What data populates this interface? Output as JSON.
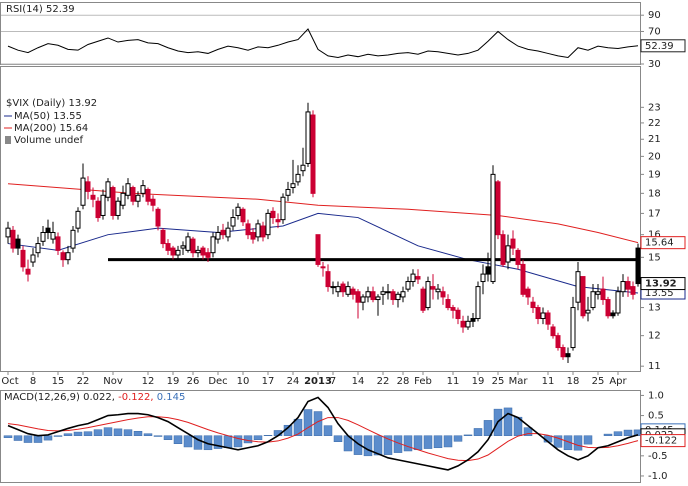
{
  "chart_data": [
    {
      "type": "line",
      "title": "RSI(14)",
      "color": "#000000",
      "x": [
        0,
        2,
        4,
        6,
        8,
        10,
        12,
        14,
        16,
        18,
        20,
        22,
        24,
        26,
        28,
        30,
        32,
        34,
        36,
        38,
        40,
        42,
        44,
        46,
        48,
        50,
        52,
        54,
        56,
        58,
        60,
        62,
        64,
        66,
        68,
        70,
        72,
        74,
        76,
        78,
        80,
        82,
        84,
        86,
        88,
        90,
        92,
        94,
        96,
        98,
        100,
        102,
        104,
        106,
        108,
        110,
        112,
        114,
        116,
        118,
        120,
        122,
        124,
        126
      ],
      "values": [
        52,
        47,
        44,
        50,
        55,
        53,
        48,
        47,
        54,
        58,
        62,
        57,
        59,
        60,
        56,
        55,
        50,
        46,
        44,
        45,
        43,
        48,
        52,
        50,
        47,
        51,
        50,
        53,
        57,
        60,
        73,
        48,
        40,
        38,
        41,
        39,
        42,
        40,
        41,
        43,
        44,
        42,
        46,
        45,
        43,
        41,
        43,
        47,
        58,
        70,
        60,
        52,
        48,
        46,
        43,
        40,
        38,
        50,
        47,
        52,
        50,
        49,
        51,
        52.39
      ],
      "ylim": [
        30,
        105
      ],
      "yticks": [
        30,
        70,
        90
      ],
      "grid": true
    },
    {
      "type": "candlestick",
      "title": "$VIX (Daily)",
      "log_scale": true,
      "up_color": "#000000",
      "down_color": "#cc0033",
      "open": [
        15.9,
        16.2,
        15.8,
        15.3,
        14.5,
        14.8,
        15.2,
        15.7,
        16.3,
        15.8,
        15.9,
        15.2,
        14.9,
        15.4,
        16.3,
        17.4,
        18.6,
        17.9,
        17.6,
        16.9,
        17.8,
        18.3,
        16.9,
        17.4,
        17.9,
        18.3,
        17.6,
        18.0,
        18.2,
        17.7,
        17.2,
        16.2,
        15.6,
        15.4,
        15.1,
        15.4,
        15.3,
        15.8,
        15.2,
        15.4,
        15.2,
        15.2,
        15.8,
        16.2,
        15.9,
        16.4,
        16.9,
        17.2,
        16.5,
        16.1,
        15.9,
        16.4,
        16.0,
        17.1,
        16.7,
        16.7,
        17.9,
        18.3,
        18.6,
        19.2,
        19.6,
        22.5,
        16.0,
        14.6,
        14.4,
        13.8,
        13.6,
        13.9,
        13.5,
        13.7,
        13.6,
        13.2,
        13.4,
        13.6,
        13.3,
        13.5,
        13.6,
        13.6,
        13.3,
        13.4,
        13.7,
        14.0,
        14.2,
        13.7,
        13.0,
        13.8,
        13.6,
        13.6,
        13.3,
        13.0,
        12.9,
        12.5,
        12.3,
        12.6,
        12.6,
        14.0,
        14.6,
        14.0,
        18.6,
        16.0,
        14.8,
        15.8,
        15.3,
        14.7,
        13.7,
        13.2,
        13.0,
        12.6,
        12.8,
        12.3,
        12.0,
        11.6,
        11.4,
        11.6,
        13.2,
        14.2,
        12.8,
        13.0,
        13.5,
        13.7,
        13.3,
        12.8,
        12.8,
        13.6,
        14.0,
        13.8,
        15.4
      ],
      "high": [
        16.6,
        16.4,
        16.0,
        15.5,
        14.9,
        15.4,
        15.9,
        16.4,
        16.7,
        16.6,
        16.1,
        15.3,
        15.5,
        16.4,
        17.3,
        19.6,
        18.9,
        18.3,
        17.8,
        18.2,
        18.8,
        18.4,
        17.8,
        18.4,
        18.8,
        18.4,
        18.1,
        18.7,
        18.3,
        17.9,
        17.3,
        16.3,
        15.8,
        15.5,
        15.5,
        15.7,
        16.1,
        15.9,
        15.5,
        15.5,
        15.4,
        16.1,
        16.4,
        16.5,
        16.6,
        17.2,
        17.5,
        17.3,
        16.7,
        16.3,
        16.7,
        16.6,
        17.2,
        17.3,
        17.0,
        18.0,
        18.6,
        19.8,
        19.5,
        20.5,
        23.3,
        22.8,
        16.0,
        14.8,
        14.7,
        14.0,
        14.0,
        14.0,
        14.0,
        13.8,
        13.7,
        13.5,
        13.8,
        13.8,
        13.5,
        13.8,
        13.9,
        13.7,
        13.6,
        13.8,
        14.2,
        14.5,
        14.5,
        13.8,
        14.2,
        14.3,
        13.9,
        13.8,
        13.5,
        13.1,
        13.0,
        12.7,
        12.7,
        12.8,
        14.0,
        14.7,
        15.2,
        19.5,
        18.7,
        16.2,
        16.0,
        16.2,
        15.4,
        14.9,
        13.8,
        13.4,
        13.1,
        13.0,
        12.9,
        12.4,
        12.1,
        11.7,
        11.6,
        13.4,
        14.8,
        14.2,
        13.4,
        13.9,
        13.9,
        14.2,
        13.4,
        12.9,
        13.8,
        14.3,
        14.2,
        14.0,
        15.6
      ],
      "low": [
        15.6,
        15.2,
        15.1,
        14.4,
        14.0,
        14.6,
        15.0,
        15.5,
        15.8,
        15.6,
        15.1,
        14.6,
        14.7,
        15.2,
        16.1,
        17.2,
        17.7,
        17.3,
        16.6,
        16.7,
        17.6,
        16.7,
        16.7,
        17.2,
        17.7,
        17.4,
        17.3,
        17.8,
        17.4,
        17.1,
        16.2,
        15.4,
        15.1,
        14.9,
        14.9,
        15.1,
        15.2,
        15.0,
        15.0,
        14.9,
        14.8,
        15.0,
        15.6,
        15.8,
        15.7,
        16.2,
        16.7,
        16.4,
        15.8,
        15.6,
        15.7,
        15.7,
        15.8,
        16.5,
        16.3,
        16.5,
        17.6,
        18.0,
        18.4,
        18.9,
        19.4,
        17.8,
        14.6,
        14.2,
        13.6,
        13.5,
        13.4,
        13.4,
        13.4,
        13.3,
        12.6,
        12.9,
        13.2,
        13.2,
        12.7,
        13.1,
        13.3,
        13.1,
        13.0,
        13.2,
        13.6,
        13.8,
        13.9,
        12.8,
        12.9,
        13.3,
        13.3,
        13.1,
        12.9,
        12.6,
        12.4,
        12.1,
        12.2,
        12.3,
        12.5,
        13.5,
        14.0,
        13.9,
        15.8,
        14.6,
        14.5,
        15.1,
        14.5,
        13.4,
        13.1,
        12.8,
        12.4,
        12.4,
        12.2,
        11.9,
        11.5,
        11.2,
        11.1,
        11.5,
        12.9,
        12.6,
        12.5,
        12.9,
        13.3,
        13.1,
        12.6,
        12.6,
        12.7,
        13.4,
        13.4,
        13.3,
        13.8
      ],
      "close": [
        16.3,
        15.4,
        15.4,
        14.6,
        14.3,
        15.1,
        15.6,
        16.1,
        16.1,
        16.1,
        15.3,
        14.9,
        15.2,
        16.2,
        17.1,
        18.8,
        18.1,
        17.7,
        16.8,
        17.9,
        18.6,
        16.9,
        17.6,
        18.0,
        18.5,
        17.6,
        17.9,
        18.4,
        17.6,
        17.4,
        16.4,
        15.6,
        15.3,
        15.1,
        15.3,
        15.5,
        15.9,
        15.2,
        15.3,
        15.1,
        15.0,
        15.9,
        16.1,
        16.0,
        16.3,
        16.8,
        17.3,
        16.6,
        16.0,
        15.8,
        16.5,
        15.9,
        17.0,
        16.8,
        16.6,
        17.8,
        18.2,
        18.5,
        19.0,
        19.5,
        22.7,
        18.0,
        14.7,
        14.6,
        13.8,
        13.8,
        13.8,
        13.6,
        13.8,
        13.5,
        13.2,
        13.4,
        13.6,
        13.3,
        13.4,
        13.6,
        13.6,
        13.3,
        13.5,
        13.6,
        14.0,
        14.3,
        14.1,
        12.9,
        14.0,
        13.7,
        13.7,
        13.4,
        13.0,
        12.9,
        12.6,
        12.3,
        12.5,
        12.5,
        13.8,
        14.3,
        14.3,
        19.0,
        16.0,
        14.7,
        15.5,
        15.4,
        14.7,
        13.5,
        13.4,
        13.0,
        12.6,
        12.8,
        12.4,
        12.0,
        11.6,
        11.3,
        11.3,
        13.0,
        14.4,
        12.7,
        12.9,
        13.6,
        13.6,
        13.3,
        12.7,
        12.7,
        13.6,
        14.0,
        13.7,
        13.5,
        13.92
      ],
      "series": [
        {
          "name": "MA(50)",
          "color": "#1a2a8c",
          "x": [
            0,
            10,
            20,
            30,
            42,
            55,
            62,
            70,
            82,
            92,
            102,
            114,
            126
          ],
          "values": [
            15.6,
            15.3,
            16.0,
            16.3,
            16.1,
            16.4,
            17.0,
            16.8,
            15.5,
            14.9,
            14.5,
            13.8,
            13.55
          ]
        },
        {
          "name": "MA(200)",
          "color": "#e02020",
          "x": [
            0,
            25,
            50,
            62,
            80,
            98,
            110,
            118,
            126
          ],
          "values": [
            18.5,
            18.0,
            17.7,
            17.4,
            17.2,
            16.9,
            16.5,
            16.1,
            15.64
          ]
        }
      ],
      "volume_label": "Volume undef",
      "hline": {
        "value": 14.9,
        "x": [
          20,
          126
        ]
      },
      "ylim": [
        10.85,
        25.8
      ],
      "yticks": [
        11,
        12,
        13,
        14,
        15,
        16,
        17,
        18,
        19,
        20,
        21,
        22,
        23
      ],
      "xticks": [
        {
          "value": 0,
          "label": "Oct"
        },
        {
          "value": 5,
          "label": "8"
        },
        {
          "value": 10,
          "label": "15"
        },
        {
          "value": 15,
          "label": "22"
        },
        {
          "value": 21,
          "label": "Nov"
        },
        {
          "value": 28,
          "label": "12"
        },
        {
          "value": 33,
          "label": "19"
        },
        {
          "value": 37,
          "label": "26"
        },
        {
          "value": 42,
          "label": "Dec"
        },
        {
          "value": 47,
          "label": "10"
        },
        {
          "value": 52,
          "label": "17"
        },
        {
          "value": 57,
          "label": "24"
        },
        {
          "value": 62,
          "label": "2013"
        },
        {
          "value": 65,
          "label": "7"
        },
        {
          "value": 70,
          "label": "14"
        },
        {
          "value": 75,
          "label": "22"
        },
        {
          "value": 79,
          "label": "28"
        },
        {
          "value": 83,
          "label": "Feb"
        },
        {
          "value": 89,
          "label": "11"
        },
        {
          "value": 94,
          "label": "19"
        },
        {
          "value": 98,
          "label": "25"
        },
        {
          "value": 102,
          "label": "Mar"
        },
        {
          "value": 108,
          "label": "11"
        },
        {
          "value": 113,
          "label": "18"
        },
        {
          "value": 118,
          "label": "25"
        },
        {
          "value": 122,
          "label": "Apr"
        }
      ]
    },
    {
      "type": "macd",
      "title": "MACD(12,26,9)",
      "x": [
        0,
        2,
        4,
        6,
        8,
        10,
        12,
        14,
        16,
        18,
        20,
        22,
        24,
        26,
        28,
        30,
        32,
        34,
        36,
        38,
        40,
        42,
        44,
        46,
        48,
        50,
        52,
        54,
        56,
        58,
        60,
        62,
        64,
        66,
        68,
        70,
        72,
        74,
        76,
        78,
        80,
        82,
        84,
        86,
        88,
        90,
        92,
        94,
        96,
        98,
        100,
        102,
        104,
        106,
        108,
        110,
        112,
        114,
        116,
        118,
        120,
        122,
        124,
        126
      ],
      "macd": {
        "color": "#000000",
        "values": [
          0.25,
          0.15,
          0.05,
          0.0,
          0.02,
          0.1,
          0.18,
          0.25,
          0.3,
          0.4,
          0.5,
          0.52,
          0.55,
          0.55,
          0.52,
          0.45,
          0.35,
          0.2,
          0.05,
          -0.1,
          -0.2,
          -0.25,
          -0.3,
          -0.35,
          -0.3,
          -0.25,
          -0.15,
          0.0,
          0.2,
          0.45,
          0.85,
          0.95,
          0.7,
          0.3,
          0.0,
          -0.2,
          -0.35,
          -0.45,
          -0.55,
          -0.6,
          -0.65,
          -0.7,
          -0.75,
          -0.8,
          -0.85,
          -0.75,
          -0.6,
          -0.4,
          -0.1,
          0.35,
          0.55,
          0.45,
          0.25,
          0.05,
          -0.15,
          -0.35,
          -0.5,
          -0.6,
          -0.5,
          -0.3,
          -0.25,
          -0.15,
          -0.05,
          0.022
        ]
      },
      "signal": {
        "color": "#e02020",
        "values": [
          0.3,
          0.27,
          0.22,
          0.17,
          0.13,
          0.12,
          0.13,
          0.16,
          0.2,
          0.25,
          0.3,
          0.35,
          0.4,
          0.44,
          0.47,
          0.47,
          0.45,
          0.4,
          0.33,
          0.24,
          0.15,
          0.07,
          0.0,
          -0.07,
          -0.12,
          -0.15,
          -0.16,
          -0.13,
          -0.06,
          0.04,
          0.2,
          0.35,
          0.45,
          0.45,
          0.38,
          0.27,
          0.15,
          0.03,
          -0.08,
          -0.18,
          -0.27,
          -0.35,
          -0.43,
          -0.5,
          -0.57,
          -0.61,
          -0.62,
          -0.58,
          -0.48,
          -0.31,
          -0.14,
          -0.01,
          0.05,
          0.05,
          0.01,
          -0.06,
          -0.15,
          -0.24,
          -0.29,
          -0.3,
          -0.29,
          -0.25,
          -0.19,
          -0.122
        ]
      },
      "histogram": {
        "color": "#5b8ccc",
        "values": [
          -0.05,
          -0.12,
          -0.17,
          -0.17,
          -0.11,
          -0.02,
          0.05,
          0.09,
          0.1,
          0.15,
          0.2,
          0.17,
          0.15,
          0.11,
          0.05,
          -0.02,
          -0.1,
          -0.2,
          -0.28,
          -0.34,
          -0.35,
          -0.32,
          -0.3,
          -0.28,
          -0.18,
          -0.1,
          0.01,
          0.13,
          0.26,
          0.41,
          0.65,
          0.6,
          0.25,
          -0.15,
          -0.38,
          -0.47,
          -0.5,
          -0.48,
          -0.47,
          -0.42,
          -0.38,
          -0.35,
          -0.32,
          -0.3,
          -0.28,
          -0.14,
          0.02,
          0.18,
          0.38,
          0.66,
          0.69,
          0.46,
          0.2,
          0.0,
          -0.16,
          -0.29,
          -0.35,
          -0.36,
          -0.21,
          0.0,
          0.04,
          0.1,
          0.14,
          0.145
        ]
      },
      "legend_labels": [
        "0.022,",
        "-0.122,",
        "0.145"
      ],
      "ylim": [
        -1.15,
        1.11
      ],
      "yticks": [
        {
          "value": -1,
          "label": "-1.0"
        },
        {
          "value": -0.5,
          "label": "-0.5"
        },
        {
          "value": 0.5,
          "label": "0.5"
        },
        {
          "value": 1,
          "label": "1.0"
        }
      ]
    }
  ]
}
